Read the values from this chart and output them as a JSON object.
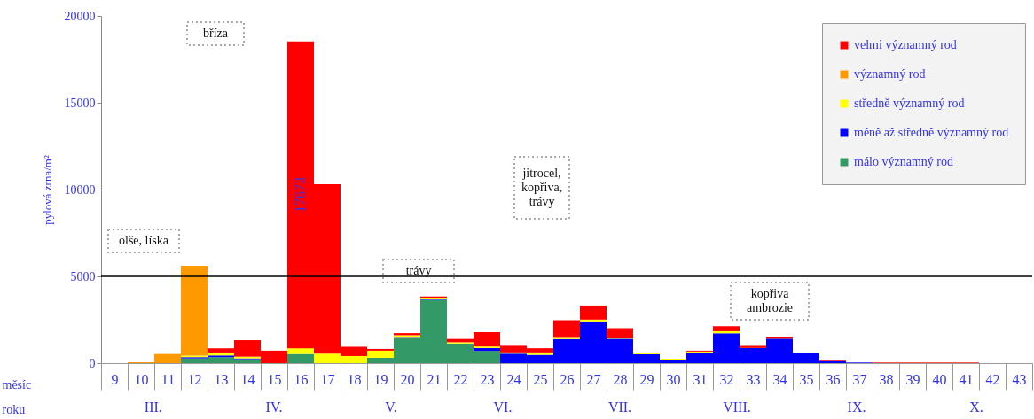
{
  "chart_data": {
    "type": "bar",
    "stacked": true,
    "ylabel": "pylová zrna/m²",
    "xlabel": "měsíc roku",
    "categories": [
      "9",
      "10",
      "11",
      "12",
      "13",
      "14",
      "15",
      "16",
      "17",
      "18",
      "19",
      "20",
      "21",
      "22",
      "23",
      "24",
      "25",
      "26",
      "27",
      "28",
      "29",
      "30",
      "31",
      "32",
      "33",
      "34",
      "35",
      "36",
      "37",
      "38",
      "39",
      "40",
      "41",
      "42",
      "43"
    ],
    "series": [
      {
        "name": "málo významný rod",
        "color": "#339966",
        "values": [
          0,
          0,
          0,
          275,
          345,
          225,
          0,
          530,
          0,
          0,
          310,
          1460,
          3650,
          1135,
          705,
          0,
          0,
          0,
          0,
          0,
          0,
          0,
          0,
          0,
          0,
          0,
          0,
          0,
          0,
          0,
          0,
          0,
          0,
          0,
          0
        ]
      },
      {
        "name": "měně až středně významný rod",
        "color": "#0000ff",
        "values": [
          0,
          0,
          0,
          70,
          100,
          50,
          0,
          0,
          0,
          0,
          0,
          50,
          70,
          0,
          170,
          550,
          480,
          1390,
          2410,
          1410,
          515,
          205,
          620,
          1720,
          875,
          1410,
          600,
          170,
          35,
          0,
          0,
          0,
          0,
          0,
          0
        ]
      },
      {
        "name": "středně významný rod",
        "color": "#ffff00",
        "values": [
          0,
          0,
          0,
          85,
          170,
          100,
          0,
          330,
          550,
          410,
          410,
          100,
          50,
          70,
          85,
          70,
          140,
          120,
          100,
          70,
          50,
          50,
          50,
          120,
          0,
          0,
          0,
          0,
          0,
          0,
          0,
          0,
          0,
          0,
          0
        ]
      },
      {
        "name": "významný rod",
        "color": "#ff9900",
        "values": [
          0,
          50,
          530,
          5180,
          0,
          0,
          0,
          0,
          0,
          0,
          0,
          0,
          0,
          0,
          0,
          0,
          0,
          0,
          0,
          0,
          0,
          0,
          0,
          0,
          0,
          0,
          0,
          0,
          0,
          0,
          0,
          0,
          0,
          0,
          0
        ]
      },
      {
        "name": "velmi významný rod",
        "color": "#ff0000",
        "values": [
          0,
          0,
          0,
          0,
          240,
          950,
          720,
          17673,
          9760,
          535,
          100,
          120,
          70,
          190,
          825,
          380,
          240,
          965,
          810,
          535,
          50,
          0,
          50,
          290,
          120,
          120,
          0,
          35,
          0,
          35,
          35,
          35,
          35,
          0,
          0
        ],
        "value_labels": [
          null,
          null,
          null,
          null,
          null,
          null,
          null,
          "17673",
          null,
          null,
          null,
          null,
          null,
          null,
          null,
          null,
          null,
          null,
          null,
          null,
          null,
          null,
          null,
          null,
          null,
          null,
          null,
          null,
          null,
          null,
          null,
          null,
          null,
          null,
          null
        ]
      }
    ],
    "ylim": [
      0,
      20000
    ],
    "yticks": [
      0,
      5000,
      10000,
      15000,
      20000
    ],
    "ref_lines": [
      {
        "axis": "y",
        "value": 5000
      }
    ],
    "legend": "top right",
    "annotations": [
      "olše, líska",
      "bříza",
      "trávy",
      "jitrocel, kopřiva, trávy",
      "kopřiva ambrozie",
      "III.",
      "IV.",
      "V.",
      "VI.",
      "VII.",
      "VIII.",
      "IX.",
      "X."
    ]
  }
}
